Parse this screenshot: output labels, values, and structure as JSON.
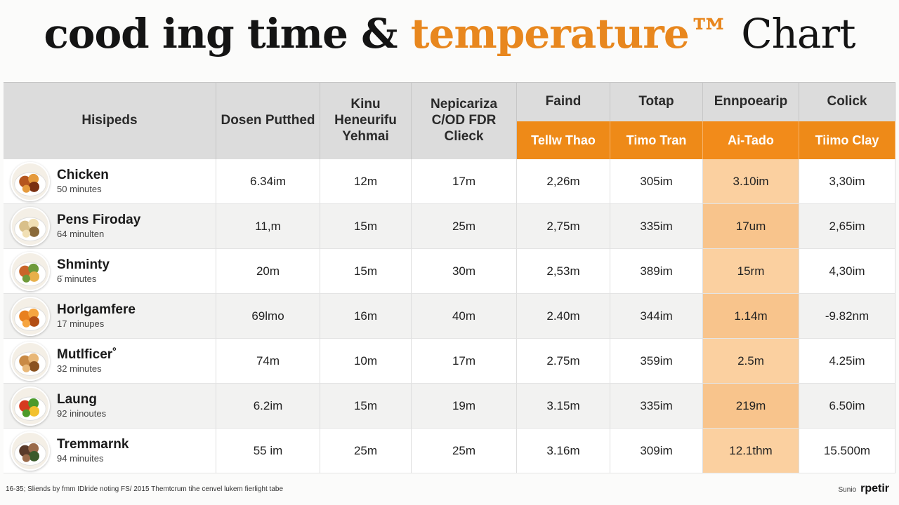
{
  "title": {
    "part1": "cood ing time & ",
    "part2": "temperature™",
    "part3": " Chart",
    "color_dark": "#141414",
    "color_orange": "#e8871e"
  },
  "table": {
    "headers": [
      "Hisipeds",
      "Dosen Putthed",
      "Kinu Heneurifu Yehmai",
      "Nepicariza C/OD FDR Clieck",
      "Faind",
      "Totap",
      "Ennpoearip",
      "Colick"
    ],
    "subheaders": [
      "Tellw Thao",
      "Timo Tran",
      "Ai-Tado",
      "Tiimo Clay"
    ],
    "highlight_color": "#f9c68f",
    "accent_color": "#ee8a18",
    "rows": [
      {
        "name": "Chicken",
        "sub": "50 minutes",
        "icon": "chicken-dish-icon",
        "values": [
          "6.34im",
          "12m",
          "17m",
          "2,26m",
          "305im",
          "3.10im",
          "3,30im"
        ]
      },
      {
        "name": "Pens Firoday",
        "sub": "64 minulten",
        "icon": "pasta-dish-icon",
        "values": [
          "11,m",
          "15m",
          "25m",
          "2,75m",
          "335im",
          "17um",
          "2,65im"
        ]
      },
      {
        "name": "Shminty",
        "sub": "6̈ minutes",
        "icon": "stir-fry-dish-icon",
        "values": [
          "20m",
          "15m",
          "30m",
          "2,53m",
          "389im",
          "15rm",
          "4,30im"
        ]
      },
      {
        "name": "Horlgamfere",
        "sub": "17 minupes",
        "icon": "sweet-potato-dish-icon",
        "values": [
          "69lmo",
          "16m",
          "40m",
          "2.40m",
          "344im",
          "1.14m",
          "-9.82nm"
        ]
      },
      {
        "name": "Mutlficer˚",
        "sub": "32 minutes",
        "icon": "fried-food-icon",
        "values": [
          "74m",
          "10m",
          "17m",
          "2.75m",
          "359im",
          "2.5m",
          "4.25im"
        ]
      },
      {
        "name": "Laung",
        "sub": "92 ininoutes",
        "icon": "vegetables-icon",
        "values": [
          "6.2im",
          "15m",
          "19m",
          "3.15m",
          "335im",
          "219m",
          "6.50im"
        ]
      },
      {
        "name": "Tremmarnk",
        "sub": "94 minuites",
        "icon": "grilled-meat-icon",
        "values": [
          "55 im",
          "25m",
          "25m",
          "3.16m",
          "309im",
          "12.1thm",
          "15.500m"
        ]
      }
    ]
  },
  "footer": {
    "left": "16-35; Sliends by fmm IDlride noting FS/ 2015 Themtcrum tihe cenvel lukem fierlight tabe",
    "right_small": "Sunio",
    "right_brand": "rpetir"
  }
}
